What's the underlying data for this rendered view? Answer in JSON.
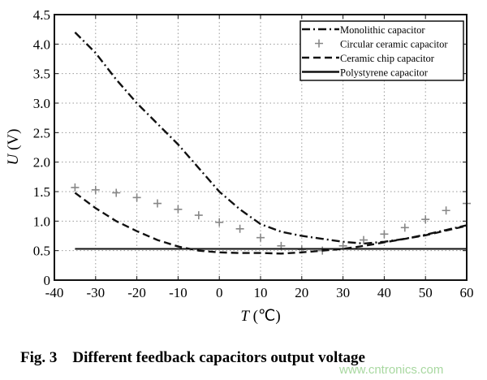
{
  "chart_data": {
    "type": "line",
    "caption": "Fig. 3    Different feedback capacitors output voltage",
    "xlabel_var": "T",
    "xlabel_unit": " (℃)",
    "ylabel_var": "U",
    "ylabel_unit": " (V)",
    "xlim": [
      -40,
      60
    ],
    "ylim": [
      0,
      4.5
    ],
    "xticks": [
      -40,
      -30,
      -20,
      -10,
      0,
      10,
      20,
      30,
      40,
      50,
      60
    ],
    "yticks": [
      0,
      0.5,
      1.0,
      1.5,
      2.0,
      2.5,
      3.0,
      3.5,
      4.0,
      4.5
    ],
    "ytick_labels": [
      "0",
      "0.5",
      "1.0",
      "1.5",
      "2.0",
      "2.5",
      "3.0",
      "3.5",
      "4.0",
      "4.5"
    ],
    "grid": true,
    "legend_position": "top-right",
    "x": [
      -35,
      -30,
      -25,
      -20,
      -15,
      -10,
      -5,
      0,
      5,
      10,
      15,
      20,
      25,
      30,
      35,
      40,
      45,
      50,
      55,
      60
    ],
    "series": [
      {
        "name": "Monolithic capacitor",
        "style": "dash-dot",
        "values": [
          4.2,
          3.85,
          3.4,
          3.0,
          2.65,
          2.3,
          1.9,
          1.5,
          1.2,
          0.95,
          0.82,
          0.75,
          0.7,
          0.65,
          0.62,
          0.65,
          0.7,
          0.77,
          0.85,
          0.93
        ]
      },
      {
        "name": "Circular ceramic capacitor",
        "style": "plus-markers",
        "values": [
          1.57,
          1.53,
          1.48,
          1.4,
          1.3,
          1.2,
          1.1,
          0.98,
          0.87,
          0.72,
          0.58,
          0.52,
          0.5,
          0.58,
          0.68,
          0.78,
          0.89,
          1.03,
          1.18,
          1.3
        ]
      },
      {
        "name": "Ceramic chip capacitor",
        "style": "dashed",
        "values": [
          1.48,
          1.22,
          1.0,
          0.83,
          0.68,
          0.57,
          0.5,
          0.47,
          0.46,
          0.46,
          0.45,
          0.47,
          0.5,
          0.53,
          0.58,
          0.64,
          0.7,
          0.76,
          0.84,
          0.92
        ]
      },
      {
        "name": "Polystyrene capacitor",
        "style": "solid",
        "values": [
          0.53,
          0.53,
          0.53,
          0.53,
          0.53,
          0.53,
          0.53,
          0.53,
          0.53,
          0.53,
          0.53,
          0.53,
          0.53,
          0.53,
          0.53,
          0.53,
          0.53,
          0.53,
          0.53,
          0.53
        ]
      }
    ],
    "colors": {
      "line": "#111111",
      "marker": "#888888",
      "grid": "#999999",
      "watermark": "#a8d8a0"
    }
  },
  "watermark": "www.cntronics.com"
}
